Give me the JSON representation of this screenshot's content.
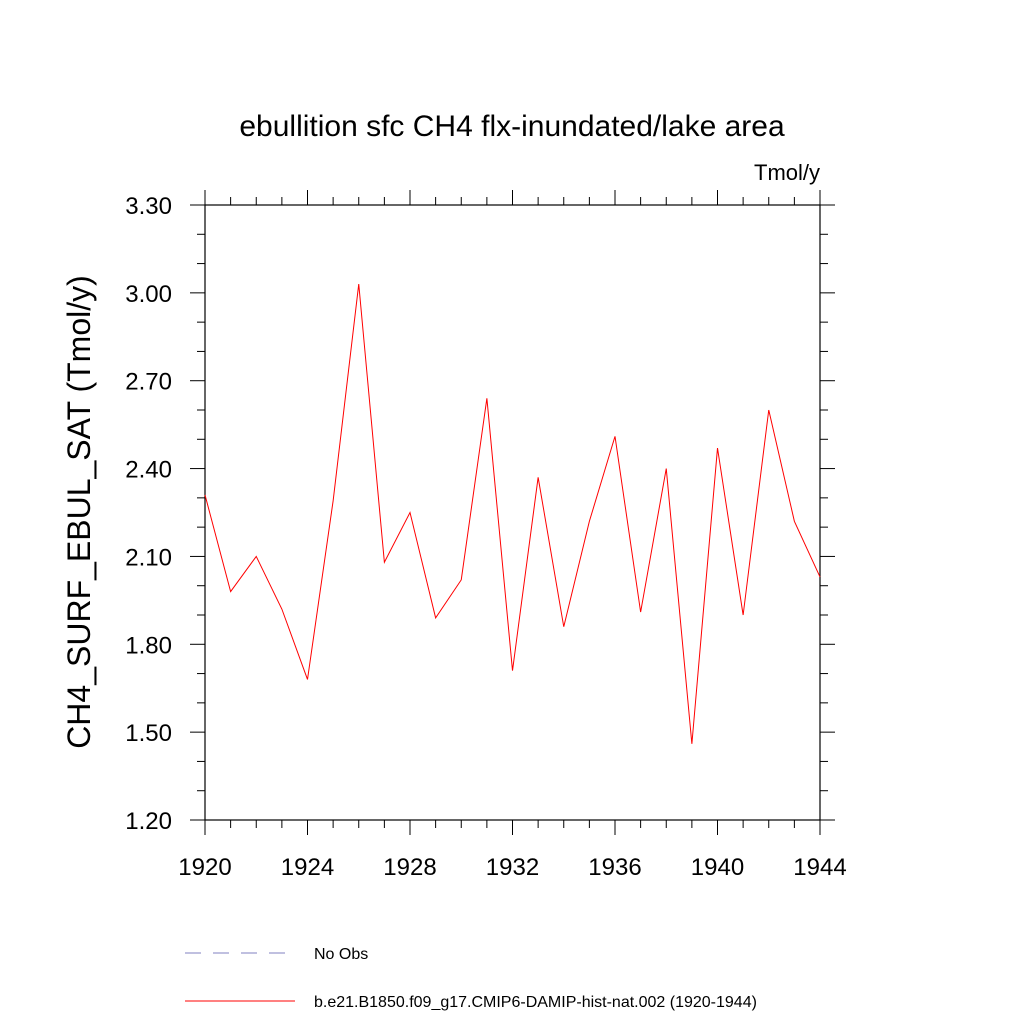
{
  "chart_data": {
    "type": "line",
    "title": "ebullition sfc CH4 flx-inundated/lake area",
    "units": "Tmol/y",
    "ylabel": "CH4_SURF_EBUL_SAT  (Tmol/y)",
    "xlabel": "",
    "xlim": [
      1920,
      1944
    ],
    "ylim": [
      1.2,
      3.3
    ],
    "xticks": [
      "1920",
      "1924",
      "1928",
      "1932",
      "1936",
      "1940",
      "1944"
    ],
    "yticks": [
      "1.20",
      "1.50",
      "1.80",
      "2.10",
      "2.40",
      "2.70",
      "3.00",
      "3.30"
    ],
    "x": [
      1920,
      1921,
      1922,
      1923,
      1924,
      1925,
      1926,
      1927,
      1928,
      1929,
      1930,
      1931,
      1932,
      1933,
      1934,
      1935,
      1936,
      1937,
      1938,
      1939,
      1940,
      1941,
      1942,
      1943,
      1944
    ],
    "series": [
      {
        "name": "b.e21.B1850.f09_g17.CMIP6-DAMIP-hist-nat.002 (1920-1944)",
        "color": "#ff0000",
        "values": [
          2.31,
          1.98,
          2.1,
          1.92,
          1.68,
          2.29,
          3.03,
          2.08,
          2.25,
          1.89,
          2.02,
          2.64,
          1.71,
          2.37,
          1.86,
          2.22,
          2.51,
          1.91,
          2.4,
          1.46,
          2.47,
          1.9,
          2.6,
          2.22,
          2.03
        ]
      }
    ],
    "legend": [
      {
        "label": "No Obs",
        "style": "dashed",
        "color": "#8080c0"
      },
      {
        "label": "b.e21.B1850.f09_g17.CMIP6-DAMIP-hist-nat.002 (1920-1944)",
        "style": "solid",
        "color": "#ff0000"
      }
    ],
    "legend_position": "bottom",
    "grid": false
  }
}
